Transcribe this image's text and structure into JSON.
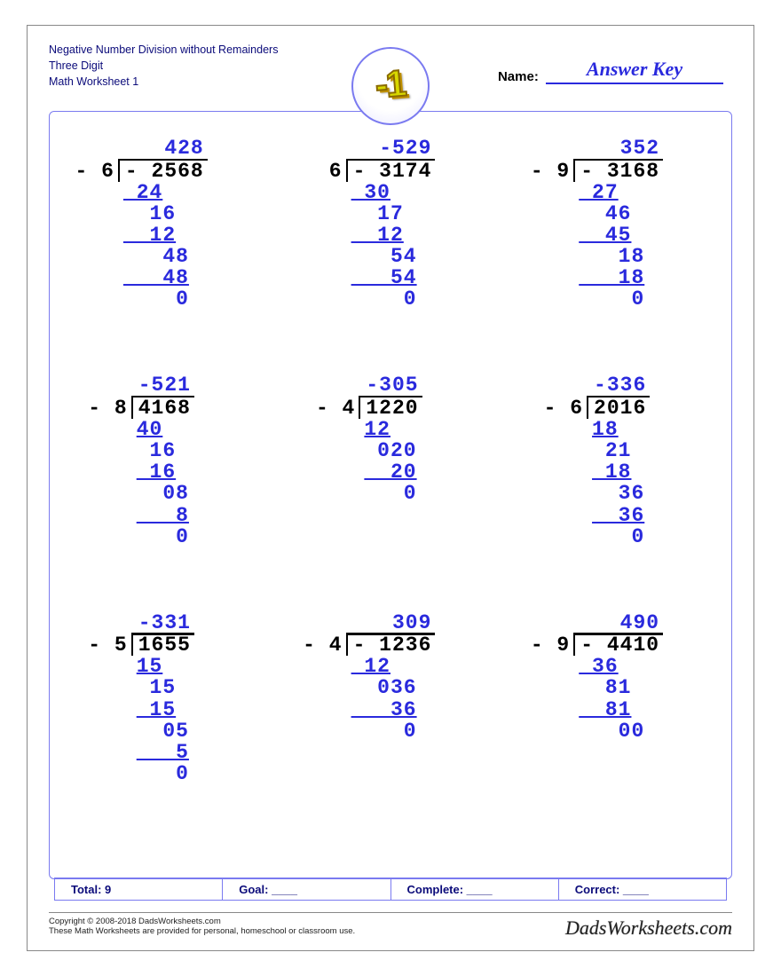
{
  "colors": {
    "accent": "#2a2add",
    "badge_ring": "#7a7af0",
    "badge_text_fill": "#d8d800",
    "badge_text_stroke": "#8a6a00",
    "title_text": "#0b0b7a",
    "black": "#000000"
  },
  "header": {
    "title_line1": "Negative Number Division without Remainders",
    "title_line2": "Three Digit",
    "title_line3": "Math Worksheet 1",
    "badge_text": "-1",
    "name_label": "Name:",
    "answer_key": "Answer Key"
  },
  "problems": [
    {
      "divisor": "- 6",
      "dividend": "- 2568",
      "quotient": " 428",
      "steps": [
        {
          "t": " 24",
          "u": true
        },
        {
          "t": "  16"
        },
        {
          "t": "  12",
          "u": true
        },
        {
          "t": "   48"
        },
        {
          "t": "   48",
          "u": true
        },
        {
          "t": "    0"
        }
      ]
    },
    {
      "divisor": "6",
      "dividend": "- 3174",
      "quotient": "-529",
      "steps": [
        {
          "t": " 30",
          "u": true
        },
        {
          "t": "  17"
        },
        {
          "t": "  12",
          "u": true
        },
        {
          "t": "   54"
        },
        {
          "t": "   54",
          "u": true
        },
        {
          "t": "    0"
        }
      ]
    },
    {
      "divisor": "- 9",
      "dividend": "- 3168",
      "quotient": " 352",
      "steps": [
        {
          "t": " 27",
          "u": true
        },
        {
          "t": "  46"
        },
        {
          "t": "  45",
          "u": true
        },
        {
          "t": "   18"
        },
        {
          "t": "   18",
          "u": true
        },
        {
          "t": "    0"
        }
      ]
    },
    {
      "divisor": "- 8",
      "dividend": "4168",
      "quotient": "-521",
      "steps": [
        {
          "t": "40",
          "u": true
        },
        {
          "t": " 16"
        },
        {
          "t": " 16",
          "u": true
        },
        {
          "t": "  08"
        },
        {
          "t": "   8",
          "u": true
        },
        {
          "t": "   0"
        }
      ]
    },
    {
      "divisor": "- 4",
      "dividend": "1220",
      "quotient": "-305",
      "steps": [
        {
          "t": "12",
          "u": true
        },
        {
          "t": " 020"
        },
        {
          "t": "  20",
          "u": true
        },
        {
          "t": "   0"
        }
      ]
    },
    {
      "divisor": "- 6",
      "dividend": "2016",
      "quotient": "-336",
      "steps": [
        {
          "t": "18",
          "u": true
        },
        {
          "t": " 21"
        },
        {
          "t": " 18",
          "u": true
        },
        {
          "t": "  36"
        },
        {
          "t": "  36",
          "u": true
        },
        {
          "t": "   0"
        }
      ]
    },
    {
      "divisor": "- 5",
      "dividend": "1655",
      "quotient": "-331",
      "steps": [
        {
          "t": "15",
          "u": true
        },
        {
          "t": " 15"
        },
        {
          "t": " 15",
          "u": true
        },
        {
          "t": "  05"
        },
        {
          "t": "   5",
          "u": true
        },
        {
          "t": "   0"
        }
      ]
    },
    {
      "divisor": "- 4",
      "dividend": "- 1236",
      "quotient": " 309",
      "steps": [
        {
          "t": " 12",
          "u": true
        },
        {
          "t": "  036"
        },
        {
          "t": "   36",
          "u": true
        },
        {
          "t": "    0"
        }
      ]
    },
    {
      "divisor": "- 9",
      "dividend": "- 4410",
      "quotient": " 490",
      "steps": [
        {
          "t": " 36",
          "u": true
        },
        {
          "t": "  81"
        },
        {
          "t": "  81",
          "u": true
        },
        {
          "t": "   00"
        }
      ]
    }
  ],
  "summary": {
    "total_label": "Total: 9",
    "goal_label": "Goal: ____",
    "complete_label": "Complete: ____",
    "correct_label": "Correct: ____"
  },
  "footer": {
    "copyright": "Copyright © 2008-2018 DadsWorksheets.com",
    "note": "These Math Worksheets are provided for personal, homeschool or classroom use.",
    "watermark": "DadsWorksheets.com"
  }
}
